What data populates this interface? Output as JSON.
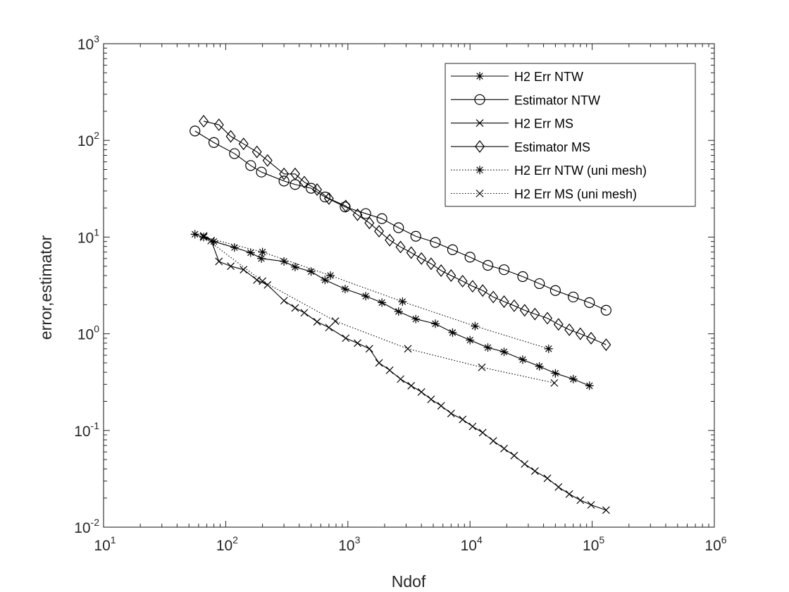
{
  "chart_data": {
    "type": "line",
    "xscale": "log",
    "yscale": "log",
    "xlim": [
      10,
      1000000
    ],
    "ylim": [
      0.01,
      1000
    ],
    "xlabel": "Ndof",
    "ylabel": "error,estimator",
    "x_ticks": [
      {
        "base": "10",
        "exp": "1",
        "value": 10
      },
      {
        "base": "10",
        "exp": "2",
        "value": 100
      },
      {
        "base": "10",
        "exp": "3",
        "value": 1000
      },
      {
        "base": "10",
        "exp": "4",
        "value": 10000
      },
      {
        "base": "10",
        "exp": "5",
        "value": 100000
      },
      {
        "base": "10",
        "exp": "6",
        "value": 1000000
      }
    ],
    "y_ticks": [
      {
        "base": "10",
        "exp": "-2",
        "value": 0.01
      },
      {
        "base": "10",
        "exp": "-1",
        "value": 0.1
      },
      {
        "base": "10",
        "exp": "0",
        "value": 1
      },
      {
        "base": "10",
        "exp": "1",
        "value": 10
      },
      {
        "base": "10",
        "exp": "2",
        "value": 100
      },
      {
        "base": "10",
        "exp": "3",
        "value": 1000
      }
    ],
    "legend_position": "top-right",
    "colors": {
      "line": "#000000",
      "axis": "#262626",
      "background": "#ffffff"
    },
    "series": [
      {
        "name": "H2 Err NTW",
        "marker": "asterisk",
        "line_style": "solid",
        "points": [
          [
            56,
            10.7
          ],
          [
            80,
            9.0
          ],
          [
            118,
            7.8
          ],
          [
            160,
            6.9
          ],
          [
            196,
            6.0
          ],
          [
            300,
            5.6
          ],
          [
            370,
            4.9
          ],
          [
            500,
            4.4
          ],
          [
            650,
            3.6
          ],
          [
            950,
            2.9
          ],
          [
            1400,
            2.45
          ],
          [
            1900,
            2.1
          ],
          [
            2600,
            1.7
          ],
          [
            3600,
            1.42
          ],
          [
            5200,
            1.27
          ],
          [
            7200,
            1.03
          ],
          [
            10000,
            0.86
          ],
          [
            14000,
            0.72
          ],
          [
            19000,
            0.65
          ],
          [
            27000,
            0.54
          ],
          [
            37000,
            0.46
          ],
          [
            50000,
            0.39
          ],
          [
            70000,
            0.34
          ],
          [
            95000,
            0.29
          ]
        ]
      },
      {
        "name": "Estimator NTW",
        "marker": "circle",
        "line_style": "solid",
        "points": [
          [
            56,
            125
          ],
          [
            80,
            95
          ],
          [
            118,
            73
          ],
          [
            160,
            55
          ],
          [
            196,
            47
          ],
          [
            300,
            38
          ],
          [
            370,
            35
          ],
          [
            500,
            32
          ],
          [
            650,
            26
          ],
          [
            950,
            20.5
          ],
          [
            1400,
            17.5
          ],
          [
            1900,
            15.5
          ],
          [
            2600,
            12.5
          ],
          [
            3600,
            10.2
          ],
          [
            5200,
            8.8
          ],
          [
            7200,
            7.4
          ],
          [
            10000,
            6.2
          ],
          [
            14000,
            5.1
          ],
          [
            19000,
            4.6
          ],
          [
            27000,
            3.9
          ],
          [
            37000,
            3.3
          ],
          [
            50000,
            2.8
          ],
          [
            70000,
            2.4
          ],
          [
            95000,
            2.1
          ],
          [
            130000,
            1.75
          ]
        ]
      },
      {
        "name": "H2 Err MS",
        "marker": "x",
        "line_style": "solid",
        "points": [
          [
            66,
            10.3
          ],
          [
            76,
            9.2
          ],
          [
            88,
            5.6
          ],
          [
            110,
            5.0
          ],
          [
            140,
            4.6
          ],
          [
            180,
            3.6
          ],
          [
            220,
            3.2
          ],
          [
            300,
            2.2
          ],
          [
            370,
            1.85
          ],
          [
            440,
            1.65
          ],
          [
            560,
            1.33
          ],
          [
            700,
            1.16
          ],
          [
            960,
            0.9
          ],
          [
            1200,
            0.8
          ],
          [
            1500,
            0.7
          ],
          [
            1800,
            0.5
          ],
          [
            2200,
            0.42
          ],
          [
            2700,
            0.34
          ],
          [
            3300,
            0.29
          ],
          [
            4000,
            0.25
          ],
          [
            4800,
            0.21
          ],
          [
            5800,
            0.18
          ],
          [
            7000,
            0.15
          ],
          [
            8700,
            0.13
          ],
          [
            10500,
            0.11
          ],
          [
            12700,
            0.095
          ],
          [
            15500,
            0.078
          ],
          [
            19000,
            0.065
          ],
          [
            23000,
            0.055
          ],
          [
            28000,
            0.045
          ],
          [
            34000,
            0.038
          ],
          [
            43000,
            0.032
          ],
          [
            53000,
            0.026
          ],
          [
            65000,
            0.022
          ],
          [
            80000,
            0.019
          ],
          [
            98000,
            0.017
          ],
          [
            130000,
            0.015
          ]
        ]
      },
      {
        "name": "Estimator MS",
        "marker": "diamond",
        "line_style": "solid",
        "points": [
          [
            66,
            158
          ],
          [
            88,
            145
          ],
          [
            110,
            110
          ],
          [
            140,
            92
          ],
          [
            180,
            76
          ],
          [
            220,
            62
          ],
          [
            300,
            45
          ],
          [
            370,
            45
          ],
          [
            440,
            37
          ],
          [
            560,
            31
          ],
          [
            700,
            25
          ],
          [
            960,
            21
          ],
          [
            1200,
            17
          ],
          [
            1500,
            14
          ],
          [
            1800,
            11.5
          ],
          [
            2200,
            9.3
          ],
          [
            2700,
            7.9
          ],
          [
            3300,
            6.9
          ],
          [
            4000,
            6.0
          ],
          [
            4800,
            5.3
          ],
          [
            5800,
            4.5
          ],
          [
            7000,
            4.0
          ],
          [
            8700,
            3.5
          ],
          [
            10500,
            3.1
          ],
          [
            12700,
            2.8
          ],
          [
            15500,
            2.4
          ],
          [
            19000,
            2.15
          ],
          [
            23000,
            1.95
          ],
          [
            28000,
            1.75
          ],
          [
            34000,
            1.6
          ],
          [
            43000,
            1.45
          ],
          [
            53000,
            1.25
          ],
          [
            65000,
            1.1
          ],
          [
            80000,
            1.0
          ],
          [
            98000,
            0.9
          ],
          [
            130000,
            0.77
          ]
        ]
      },
      {
        "name": "H2 Err NTW (uni mesh)",
        "marker": "asterisk",
        "line_style": "dotted",
        "points": [
          [
            66,
            10.0
          ],
          [
            200,
            7.0
          ],
          [
            720,
            4.0
          ],
          [
            2800,
            2.15
          ],
          [
            11000,
            1.2
          ],
          [
            44000,
            0.7
          ]
        ]
      },
      {
        "name": "H2 Err MS (uni mesh)",
        "marker": "x",
        "line_style": "dotted",
        "points": [
          [
            66,
            10.0
          ],
          [
            200,
            3.5
          ],
          [
            790,
            1.35
          ],
          [
            3100,
            0.7
          ],
          [
            12500,
            0.45
          ],
          [
            49000,
            0.31
          ]
        ]
      }
    ]
  }
}
